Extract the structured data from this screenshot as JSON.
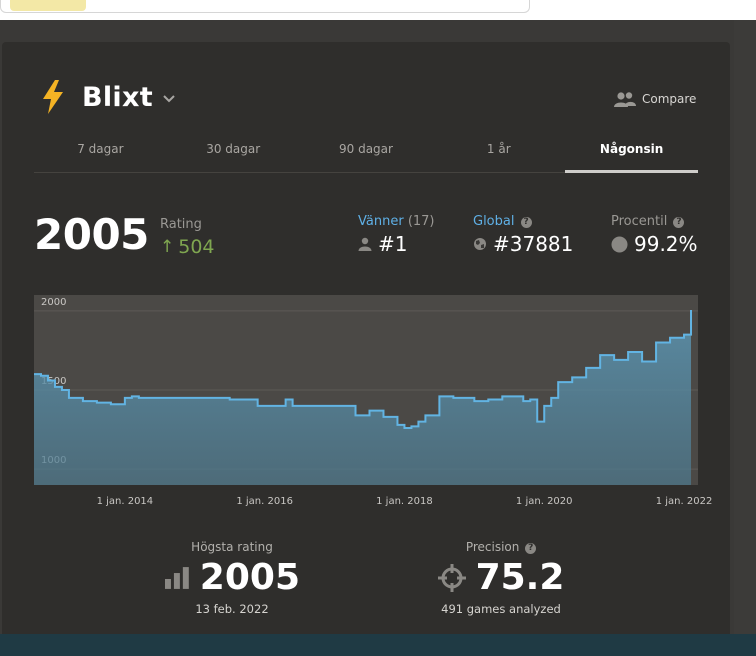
{
  "header": {
    "title": "Blixt",
    "compare_label": "Compare"
  },
  "tabs": [
    {
      "label": "7 dagar",
      "active": false
    },
    {
      "label": "30 dagar",
      "active": false
    },
    {
      "label": "90 dagar",
      "active": false
    },
    {
      "label": "1 år",
      "active": false
    },
    {
      "label": "Någonsin",
      "active": true
    }
  ],
  "rating": {
    "value": "2005",
    "label": "Rating",
    "gain": "504"
  },
  "friends": {
    "label": "Vänner",
    "count": "(17)",
    "value": "#1"
  },
  "global": {
    "label": "Global",
    "value": "#37881"
  },
  "percentile": {
    "label": "Procentil",
    "value": "99.2%"
  },
  "chart_data": {
    "type": "area",
    "x_tick_labels": [
      "1 jan. 2014",
      "1 jan. 2016",
      "1 jan. 2018",
      "1 jan. 2020",
      "1 jan. 2022"
    ],
    "y_tick_labels": [
      "2000",
      "1500",
      "1000"
    ],
    "ylim": [
      900,
      2100
    ],
    "grid": true,
    "series": [
      {
        "x": [
          2012.7,
          2012.8,
          2012.9,
          2013.0,
          2013.1,
          2013.2,
          2013.4,
          2013.6,
          2013.8,
          2014.0,
          2014.1,
          2014.2,
          2014.5,
          2014.7,
          2015.0,
          2015.5,
          2015.9,
          2016.0,
          2016.2,
          2016.3,
          2016.4,
          2016.5,
          2016.7,
          2017.0,
          2017.3,
          2017.5,
          2017.7,
          2017.9,
          2018.0,
          2018.1,
          2018.2,
          2018.3,
          2018.5,
          2018.7,
          2019.0,
          2019.2,
          2019.4,
          2019.6,
          2019.7,
          2019.8,
          2019.9,
          2020.0,
          2020.1,
          2020.2,
          2020.4,
          2020.6,
          2020.8,
          2021.0,
          2021.2,
          2021.4,
          2021.6,
          2021.8,
          2022.0,
          2022.1
        ],
        "y": [
          1600,
          1590,
          1560,
          1520,
          1500,
          1450,
          1430,
          1420,
          1410,
          1450,
          1460,
          1450,
          1450,
          1450,
          1450,
          1440,
          1400,
          1400,
          1400,
          1440,
          1400,
          1400,
          1400,
          1400,
          1340,
          1370,
          1330,
          1280,
          1260,
          1270,
          1300,
          1340,
          1460,
          1450,
          1430,
          1440,
          1460,
          1460,
          1430,
          1440,
          1300,
          1400,
          1450,
          1550,
          1580,
          1640,
          1720,
          1690,
          1740,
          1680,
          1800,
          1830,
          1850,
          2005
        ]
      }
    ]
  },
  "peak": {
    "label": "Högsta rating",
    "value": "2005",
    "date": "13 feb. 2022"
  },
  "precision": {
    "label": "Precision",
    "value": "75.2",
    "sub": "491 games analyzed"
  },
  "colors": {
    "accent_green": "#7fa650",
    "link_blue": "#5fb0e6",
    "line_blue": "#62b4e3",
    "bolt_yellow": "#f4b324"
  }
}
